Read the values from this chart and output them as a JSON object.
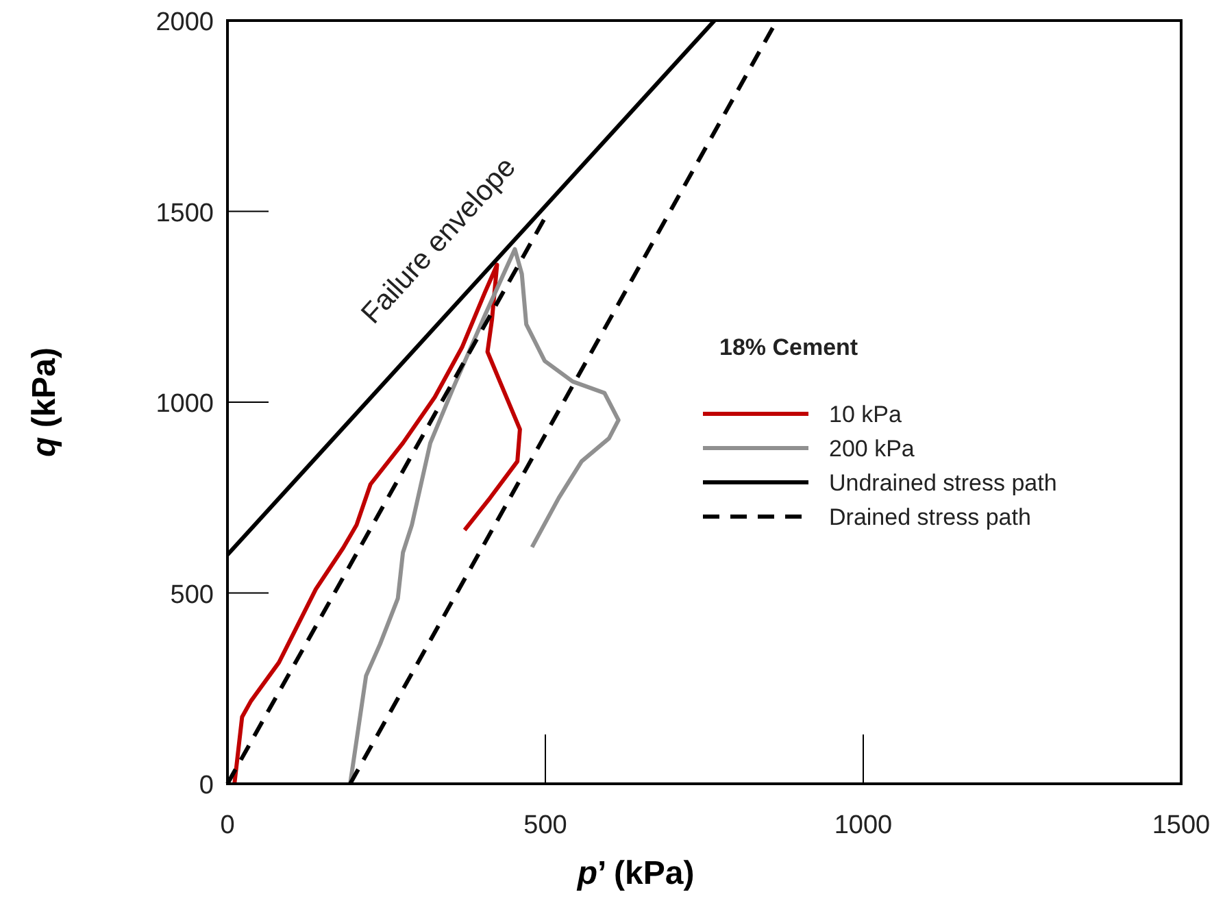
{
  "chart_data": {
    "type": "line",
    "xlabel": "p’ (kPa)",
    "ylabel": "q (kPa)",
    "legend_title": "18% Cement",
    "legend": "right",
    "grid": false,
    "xlim": [
      0,
      1500
    ],
    "ylim": [
      0,
      2000
    ],
    "xticks": [
      0,
      500,
      1000,
      1500
    ],
    "yticks": [
      0,
      500,
      1000,
      1500,
      2000
    ],
    "annotations": [
      "Failure envelope"
    ],
    "series": [
      {
        "name": "10 kPa",
        "color": "#c00000",
        "line_style": "solid",
        "x": [
          11,
          23,
          37,
          81,
          139,
          182,
          203,
          225,
          276,
          326,
          369,
          405,
          424,
          416,
          409,
          427,
          460,
          456,
          413,
          373
        ],
        "values": [
          0,
          175,
          217,
          318,
          510,
          618,
          678,
          785,
          893,
          1013,
          1144,
          1288,
          1360,
          1216,
          1132,
          1060,
          929,
          845,
          749,
          665
        ]
      },
      {
        "name": "200 kPa",
        "color": "#909090",
        "line_style": "solid",
        "x": [
          193,
          218,
          240,
          268,
          276,
          290,
          319,
          355,
          405,
          452,
          463,
          470,
          499,
          543,
          593,
          615,
          600,
          557,
          521,
          479
        ],
        "values": [
          0,
          283,
          366,
          486,
          606,
          678,
          893,
          1037,
          1228,
          1401,
          1336,
          1204,
          1108,
          1054,
          1024,
          953,
          905,
          845,
          749,
          620
        ]
      },
      {
        "name": "Undrained stress path",
        "color": "#000000",
        "line_style": "solid",
        "x": [
          0,
          766
        ],
        "values": [
          600,
          2000
        ]
      },
      {
        "name": "Drained stress path",
        "color": "#000000",
        "line_style": "dashed",
        "x": [
          0,
          505
        ],
        "values": [
          0,
          1500
        ]
      },
      {
        "color": "#000000",
        "line_style": "dashed",
        "x": [
          193,
          864
        ],
        "values": [
          0,
          2000
        ]
      }
    ]
  }
}
